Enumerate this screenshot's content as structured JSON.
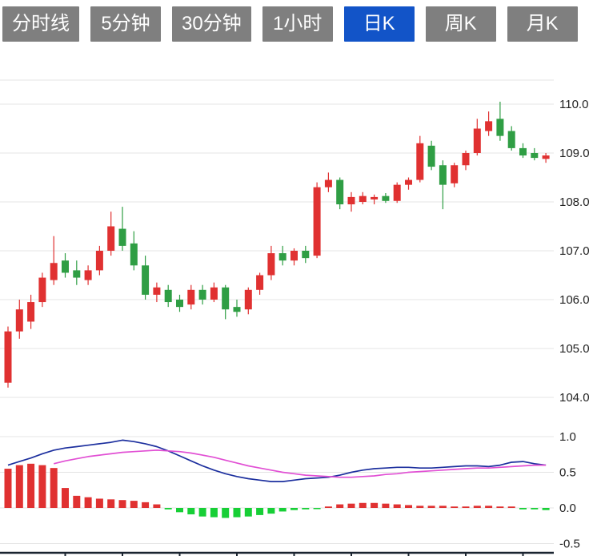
{
  "toolbar": {
    "button_bg": "#7f7f7f",
    "button_active_bg": "#1254c8",
    "button_text": "#ffffff",
    "buttons": [
      {
        "label": "分时线",
        "active": false
      },
      {
        "label": "5分钟",
        "active": false
      },
      {
        "label": "30分钟",
        "active": false
      },
      {
        "label": "1小时",
        "active": false
      },
      {
        "label": "日K",
        "active": true
      },
      {
        "label": "周K",
        "active": false
      },
      {
        "label": "月K",
        "active": false
      }
    ]
  },
  "chart_data": {
    "type": "candlestick",
    "legend_position": "none",
    "grid": true,
    "price_panel": {
      "ylabel": "",
      "yticks": [
        110.0,
        109.0,
        108.0,
        107.0,
        106.0,
        105.0,
        104.0
      ],
      "ylim": [
        103.6,
        110.7
      ],
      "candles_ohlc": [
        [
          104.3,
          105.45,
          104.2,
          105.35
        ],
        [
          105.35,
          106.0,
          105.2,
          105.8
        ],
        [
          105.55,
          106.1,
          105.4,
          105.95
        ],
        [
          105.95,
          106.55,
          105.85,
          106.45
        ],
        [
          106.4,
          107.3,
          106.3,
          106.75
        ],
        [
          106.8,
          106.95,
          106.45,
          106.55
        ],
        [
          106.6,
          106.8,
          106.3,
          106.45
        ],
        [
          106.4,
          106.7,
          106.3,
          106.6
        ],
        [
          106.6,
          107.1,
          106.5,
          107.0
        ],
        [
          107.0,
          107.8,
          106.9,
          107.5
        ],
        [
          107.45,
          107.9,
          107.0,
          107.1
        ],
        [
          107.15,
          107.4,
          106.6,
          106.7
        ],
        [
          106.7,
          106.9,
          106.0,
          106.1
        ],
        [
          106.1,
          106.35,
          105.95,
          106.25
        ],
        [
          106.2,
          106.3,
          105.85,
          105.95
        ],
        [
          106.0,
          106.1,
          105.75,
          105.85
        ],
        [
          105.9,
          106.3,
          105.8,
          106.2
        ],
        [
          106.2,
          106.3,
          105.9,
          106.0
        ],
        [
          106.0,
          106.35,
          105.95,
          106.25
        ],
        [
          106.25,
          106.3,
          105.6,
          105.8
        ],
        [
          105.85,
          106.0,
          105.65,
          105.75
        ],
        [
          105.8,
          106.25,
          105.7,
          106.2
        ],
        [
          106.2,
          106.55,
          106.1,
          106.5
        ],
        [
          106.5,
          107.1,
          106.4,
          106.95
        ],
        [
          106.95,
          107.1,
          106.7,
          106.8
        ],
        [
          106.8,
          107.05,
          106.7,
          107.0
        ],
        [
          107.0,
          107.1,
          106.75,
          106.85
        ],
        [
          106.9,
          108.4,
          106.85,
          108.3
        ],
        [
          108.3,
          108.6,
          108.2,
          108.45
        ],
        [
          108.45,
          108.5,
          107.85,
          107.95
        ],
        [
          107.95,
          108.2,
          107.8,
          108.1
        ],
        [
          108.0,
          108.2,
          107.95,
          108.12
        ],
        [
          108.05,
          108.15,
          107.95,
          108.1
        ],
        [
          108.12,
          108.18,
          107.98,
          108.02
        ],
        [
          108.02,
          108.4,
          107.98,
          108.35
        ],
        [
          108.35,
          108.5,
          108.25,
          108.45
        ],
        [
          108.45,
          109.35,
          108.4,
          109.2
        ],
        [
          109.15,
          109.25,
          108.65,
          108.72
        ],
        [
          108.75,
          108.85,
          107.85,
          108.35
        ],
        [
          108.38,
          108.8,
          108.3,
          108.75
        ],
        [
          108.75,
          109.05,
          108.65,
          109.0
        ],
        [
          109.0,
          109.7,
          108.95,
          109.5
        ],
        [
          109.45,
          109.85,
          109.35,
          109.65
        ],
        [
          109.7,
          110.05,
          109.25,
          109.35
        ],
        [
          109.45,
          109.55,
          109.05,
          109.1
        ],
        [
          109.1,
          109.2,
          108.9,
          108.95
        ],
        [
          109.0,
          109.1,
          108.85,
          108.9
        ],
        [
          108.88,
          109.0,
          108.8,
          108.95
        ]
      ]
    },
    "macd_panel": {
      "yticks": [
        1.0,
        0.5,
        0.0,
        -0.5
      ],
      "ylim": [
        -0.6,
        1.15
      ],
      "histogram": [
        0.55,
        0.6,
        0.62,
        0.6,
        0.56,
        0.28,
        0.17,
        0.15,
        0.13,
        0.12,
        0.11,
        0.1,
        0.08,
        0.05,
        -0.02,
        -0.06,
        -0.09,
        -0.12,
        -0.13,
        -0.14,
        -0.13,
        -0.12,
        -0.1,
        -0.08,
        -0.05,
        -0.03,
        -0.02,
        -0.01,
        0.02,
        0.05,
        0.06,
        0.07,
        0.07,
        0.06,
        0.05,
        0.04,
        0.03,
        0.03,
        0.03,
        0.02,
        0.02,
        0.03,
        0.03,
        0.02,
        0.02,
        -0.02,
        -0.02,
        -0.03
      ],
      "dif": [
        0.6,
        0.65,
        0.7,
        0.76,
        0.81,
        0.84,
        0.86,
        0.88,
        0.9,
        0.92,
        0.95,
        0.93,
        0.9,
        0.86,
        0.8,
        0.73,
        0.66,
        0.59,
        0.53,
        0.48,
        0.44,
        0.41,
        0.39,
        0.37,
        0.37,
        0.39,
        0.41,
        0.42,
        0.43,
        0.46,
        0.5,
        0.53,
        0.55,
        0.56,
        0.57,
        0.57,
        0.56,
        0.56,
        0.57,
        0.58,
        0.59,
        0.59,
        0.58,
        0.6,
        0.64,
        0.65,
        0.62,
        0.6
      ],
      "dea": [
        null,
        null,
        null,
        null,
        0.62,
        0.66,
        0.69,
        0.72,
        0.74,
        0.76,
        0.78,
        0.79,
        0.8,
        0.81,
        0.8,
        0.79,
        0.77,
        0.74,
        0.71,
        0.67,
        0.63,
        0.59,
        0.56,
        0.53,
        0.5,
        0.48,
        0.46,
        0.45,
        0.44,
        0.43,
        0.43,
        0.44,
        0.45,
        0.47,
        0.48,
        0.5,
        0.51,
        0.52,
        0.53,
        0.54,
        0.55,
        0.56,
        0.56,
        0.57,
        0.58,
        0.59,
        0.6,
        0.6
      ]
    },
    "colors": {
      "up": "#e03131",
      "down": "#2f9e44",
      "hist_up": "#e03131",
      "hist_down": "#17cf36",
      "dif_line": "#1c2f9e",
      "dea_line": "#e14fd4",
      "grid": "#e4e4e4",
      "axis_text": "#222222",
      "bottom_axis": "#1a2430"
    }
  }
}
